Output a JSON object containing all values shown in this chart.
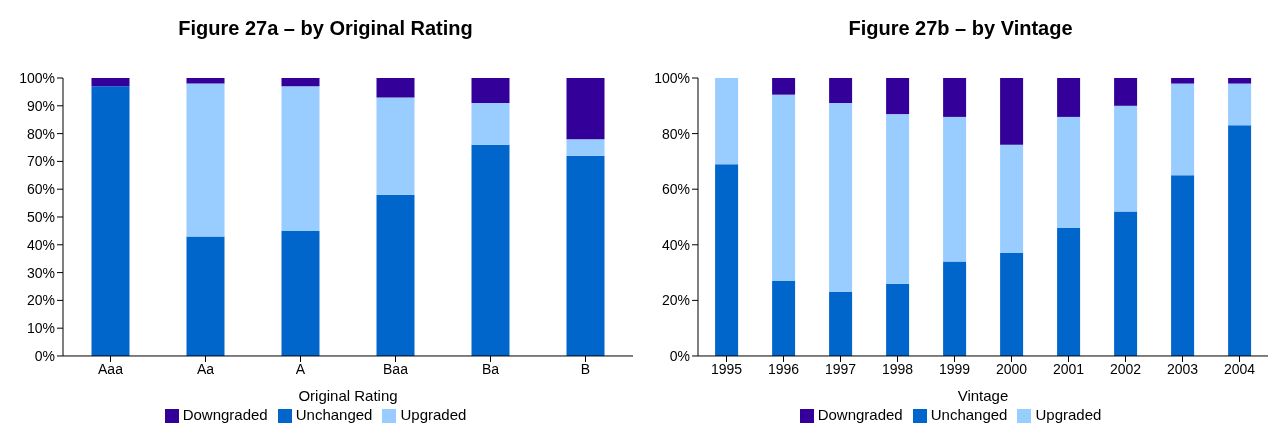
{
  "chart_data": [
    {
      "type": "bar",
      "title": "Figure 27a – by Original Rating",
      "xlabel": "Original Rating",
      "categories": [
        "Aaa",
        "Aa",
        "A",
        "Baa",
        "Ba",
        "B"
      ],
      "stacked": true,
      "ylim": [
        0,
        100
      ],
      "yticks": [
        {
          "value": 0,
          "label": "0%"
        },
        {
          "value": 10,
          "label": "10%"
        },
        {
          "value": 20,
          "label": "20%"
        },
        {
          "value": 30,
          "label": "30%"
        },
        {
          "value": 40,
          "label": "40%"
        },
        {
          "value": 50,
          "label": "50%"
        },
        {
          "value": 60,
          "label": "60%"
        },
        {
          "value": 70,
          "label": "70%"
        },
        {
          "value": 80,
          "label": "80%"
        },
        {
          "value": 90,
          "label": "90%"
        },
        {
          "value": 100,
          "label": "100%"
        }
      ],
      "series": [
        {
          "name": "Unchanged",
          "color": "#0066cc",
          "values": [
            97,
            43,
            45,
            58,
            76,
            72
          ]
        },
        {
          "name": "Upgraded",
          "color": "#99ccff",
          "values": [
            0,
            55,
            52,
            35,
            15,
            6
          ]
        },
        {
          "name": "Downgraded",
          "color": "#330099",
          "values": [
            3,
            2,
            3,
            7,
            9,
            22
          ]
        }
      ],
      "grid": false,
      "legend": "bottom"
    },
    {
      "type": "bar",
      "title": "Figure 27b – by Vintage",
      "xlabel": "Vintage",
      "categories": [
        "1995",
        "1996",
        "1997",
        "1998",
        "1999",
        "2000",
        "2001",
        "2002",
        "2003",
        "2004"
      ],
      "stacked": true,
      "ylim": [
        0,
        100
      ],
      "yticks": [
        {
          "value": 0,
          "label": "0%"
        },
        {
          "value": 20,
          "label": "20%"
        },
        {
          "value": 40,
          "label": "40%"
        },
        {
          "value": 60,
          "label": "60%"
        },
        {
          "value": 80,
          "label": "80%"
        },
        {
          "value": 100,
          "label": "100%"
        }
      ],
      "series": [
        {
          "name": "Unchanged",
          "color": "#0066cc",
          "values": [
            69,
            27,
            23,
            26,
            34,
            37,
            46,
            52,
            65,
            83
          ]
        },
        {
          "name": "Upgraded",
          "color": "#99ccff",
          "values": [
            31,
            67,
            68,
            61,
            52,
            39,
            40,
            38,
            33,
            15
          ]
        },
        {
          "name": "Downgraded",
          "color": "#330099",
          "values": [
            0,
            6,
            9,
            13,
            14,
            24,
            14,
            10,
            2,
            2
          ]
        }
      ],
      "grid": false,
      "legend": "bottom"
    }
  ]
}
